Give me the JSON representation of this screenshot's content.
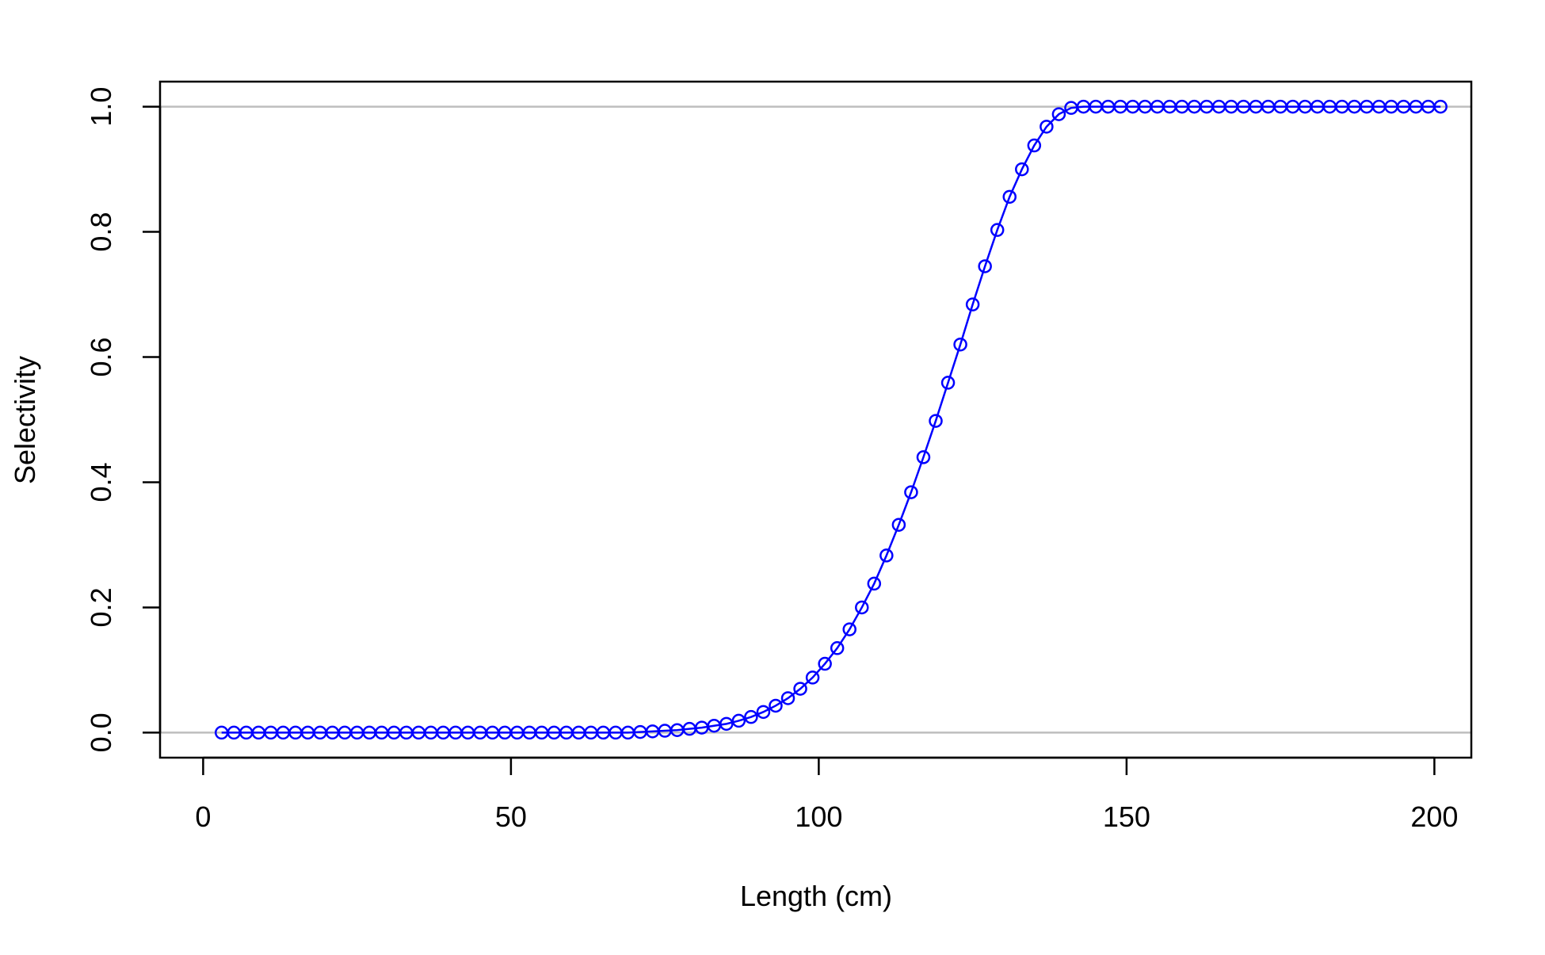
{
  "chart_data": {
    "type": "line",
    "title": "",
    "xlabel": "Length (cm)",
    "ylabel": "Selectivity",
    "xlim": [
      -7,
      206
    ],
    "ylim": [
      -0.04,
      1.04
    ],
    "xticks": [
      0,
      50,
      100,
      150,
      200
    ],
    "yticks": [
      0.0,
      0.2,
      0.4,
      0.6,
      0.8,
      1.0
    ],
    "xtick_labels": [
      "0",
      "50",
      "100",
      "150",
      "200"
    ],
    "ytick_labels": [
      "0.0",
      "0.2",
      "0.4",
      "0.6",
      "0.8",
      "1.0"
    ],
    "reference_lines_y": [
      0,
      1
    ],
    "reference_line_color": "#bebebe",
    "grid": false,
    "legend": "none",
    "series": [
      {
        "color": "#0000ff",
        "marker": "open-circle",
        "line": true,
        "x": [
          3,
          5,
          7,
          9,
          11,
          13,
          15,
          17,
          19,
          21,
          23,
          25,
          27,
          29,
          31,
          33,
          35,
          37,
          39,
          41,
          43,
          45,
          47,
          49,
          51,
          53,
          55,
          57,
          59,
          61,
          63,
          65,
          67,
          69,
          71,
          73,
          75,
          77,
          79,
          81,
          83,
          85,
          87,
          89,
          91,
          93,
          95,
          97,
          99,
          101,
          103,
          105,
          107,
          109,
          111,
          113,
          115,
          117,
          119,
          121,
          123,
          125,
          127,
          129,
          131,
          133,
          135,
          137,
          139,
          141,
          143,
          145,
          147,
          149,
          151,
          153,
          155,
          157,
          159,
          161,
          163,
          165,
          167,
          169,
          171,
          173,
          175,
          177,
          179,
          181,
          183,
          185,
          187,
          189,
          191,
          193,
          195,
          197,
          199,
          201
        ],
        "y": [
          0,
          0,
          0,
          0,
          0,
          0,
          0,
          0,
          0,
          0,
          0,
          0,
          0,
          0,
          0,
          0,
          0,
          0,
          0,
          0,
          0,
          0,
          0,
          0,
          0,
          0,
          0,
          0,
          0,
          0,
          0,
          0,
          0,
          0,
          0.001,
          0.002,
          0.003,
          0.004,
          0.006,
          0.008,
          0.011,
          0.014,
          0.019,
          0.025,
          0.033,
          0.043,
          0.055,
          0.07,
          0.088,
          0.11,
          0.135,
          0.165,
          0.2,
          0.238,
          0.283,
          0.332,
          0.384,
          0.44,
          0.498,
          0.559,
          0.62,
          0.684,
          0.745,
          0.803,
          0.856,
          0.9,
          0.938,
          0.968,
          0.988,
          0.998,
          1,
          1,
          1,
          1,
          1,
          1,
          1,
          1,
          1,
          1,
          1,
          1,
          1,
          1,
          1,
          1,
          1,
          1,
          1,
          1,
          1,
          1,
          1,
          1,
          1,
          1,
          1,
          1,
          1,
          1
        ]
      }
    ]
  }
}
